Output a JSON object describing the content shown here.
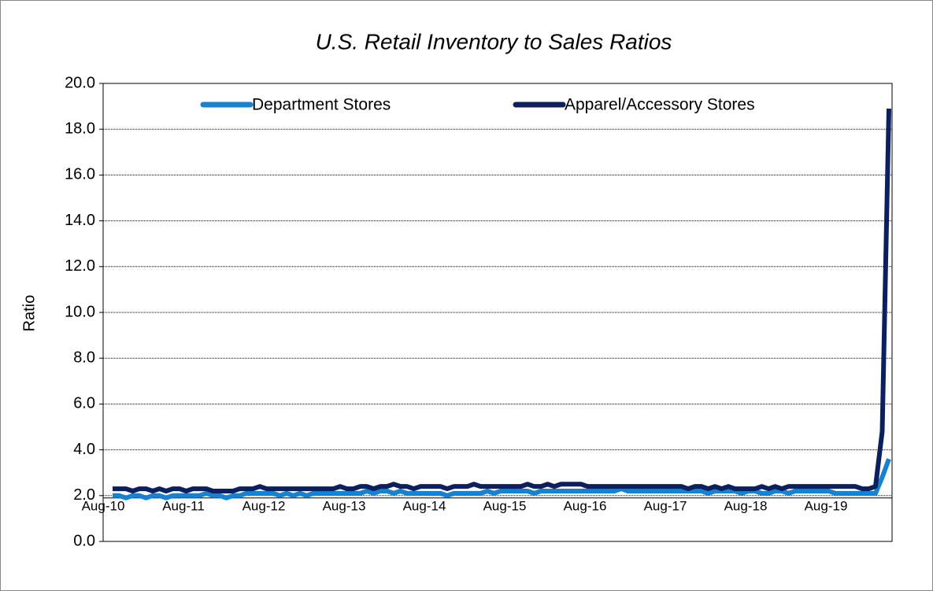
{
  "chart_data": {
    "type": "line",
    "title": "U.S. Retail Inventory to Sales Ratios",
    "y_label": "Ratio",
    "categories": [
      "Aug-10",
      null,
      null,
      null,
      null,
      null,
      null,
      null,
      null,
      null,
      null,
      null,
      "Aug-11",
      null,
      null,
      null,
      null,
      null,
      null,
      null,
      null,
      null,
      null,
      null,
      "Aug-12",
      null,
      null,
      null,
      null,
      null,
      null,
      null,
      null,
      null,
      null,
      null,
      "Aug-13",
      null,
      null,
      null,
      null,
      null,
      null,
      null,
      null,
      null,
      null,
      null,
      "Aug-14",
      null,
      null,
      null,
      null,
      null,
      null,
      null,
      null,
      null,
      null,
      null,
      "Aug-15",
      null,
      null,
      null,
      null,
      null,
      null,
      null,
      null,
      null,
      null,
      null,
      "Aug-16",
      null,
      null,
      null,
      null,
      null,
      null,
      null,
      null,
      null,
      null,
      null,
      "Aug-17",
      null,
      null,
      null,
      null,
      null,
      null,
      null,
      null,
      null,
      null,
      null,
      "Aug-18",
      null,
      null,
      null,
      null,
      null,
      null,
      null,
      null,
      null,
      null,
      null,
      "Aug-19",
      null,
      null,
      null,
      null,
      null,
      null,
      null,
      null
    ],
    "series": [
      {
        "name": "Department Stores",
        "color": "#1682d0",
        "values": [
          2.0,
          2.0,
          1.9,
          2.0,
          2.0,
          1.9,
          2.0,
          2.0,
          1.9,
          2.0,
          2.0,
          2.0,
          2.0,
          2.0,
          2.1,
          2.0,
          2.0,
          1.9,
          2.0,
          2.0,
          2.1,
          2.1,
          2.1,
          2.1,
          2.1,
          2.0,
          2.1,
          2.0,
          2.1,
          2.0,
          2.1,
          2.1,
          2.1,
          2.1,
          2.1,
          2.1,
          2.1,
          2.1,
          2.2,
          2.1,
          2.2,
          2.2,
          2.1,
          2.2,
          2.1,
          2.1,
          2.1,
          2.1,
          2.1,
          2.1,
          2.0,
          2.1,
          2.1,
          2.1,
          2.1,
          2.1,
          2.2,
          2.1,
          2.2,
          2.2,
          2.2,
          2.2,
          2.2,
          2.1,
          2.2,
          2.2,
          2.2,
          2.2,
          2.2,
          2.2,
          2.2,
          2.2,
          2.2,
          2.2,
          2.2,
          2.2,
          2.3,
          2.2,
          2.2,
          2.2,
          2.2,
          2.2,
          2.2,
          2.2,
          2.2,
          2.2,
          2.2,
          2.2,
          2.2,
          2.1,
          2.2,
          2.2,
          2.2,
          2.2,
          2.1,
          2.2,
          2.2,
          2.1,
          2.1,
          2.2,
          2.2,
          2.1,
          2.2,
          2.2,
          2.2,
          2.2,
          2.2,
          2.2,
          2.1,
          2.1,
          2.1,
          2.1,
          2.1,
          2.1,
          2.1,
          2.8,
          3.6
        ]
      },
      {
        "name": "Apparel/Accessory Stores",
        "color": "#0c1f5e",
        "values": [
          2.3,
          2.3,
          2.3,
          2.2,
          2.3,
          2.3,
          2.2,
          2.3,
          2.2,
          2.3,
          2.3,
          2.2,
          2.3,
          2.3,
          2.3,
          2.2,
          2.2,
          2.2,
          2.2,
          2.3,
          2.3,
          2.3,
          2.4,
          2.3,
          2.3,
          2.3,
          2.3,
          2.3,
          2.3,
          2.3,
          2.3,
          2.3,
          2.3,
          2.3,
          2.4,
          2.3,
          2.3,
          2.4,
          2.4,
          2.3,
          2.4,
          2.4,
          2.5,
          2.4,
          2.4,
          2.3,
          2.4,
          2.4,
          2.4,
          2.4,
          2.3,
          2.4,
          2.4,
          2.4,
          2.5,
          2.4,
          2.4,
          2.4,
          2.4,
          2.4,
          2.4,
          2.4,
          2.5,
          2.4,
          2.4,
          2.5,
          2.4,
          2.5,
          2.5,
          2.5,
          2.5,
          2.4,
          2.4,
          2.4,
          2.4,
          2.4,
          2.4,
          2.4,
          2.4,
          2.4,
          2.4,
          2.4,
          2.4,
          2.4,
          2.4,
          2.4,
          2.3,
          2.4,
          2.4,
          2.3,
          2.4,
          2.3,
          2.4,
          2.3,
          2.3,
          2.3,
          2.3,
          2.4,
          2.3,
          2.4,
          2.3,
          2.4,
          2.4,
          2.4,
          2.4,
          2.4,
          2.4,
          2.4,
          2.4,
          2.4,
          2.4,
          2.4,
          2.3,
          2.3,
          2.4,
          4.8,
          18.9
        ]
      }
    ],
    "ylim": [
      0,
      20
    ],
    "yticks": [
      {
        "value": 0,
        "label": "0.0"
      },
      {
        "value": 2,
        "label": "2.0"
      },
      {
        "value": 4,
        "label": "4.0"
      },
      {
        "value": 6,
        "label": "6.0"
      },
      {
        "value": 8,
        "label": "8.0"
      },
      {
        "value": 10,
        "label": "10.0"
      },
      {
        "value": 12,
        "label": "12.0"
      },
      {
        "value": 14,
        "label": "14.0"
      },
      {
        "value": 16,
        "label": "16.0"
      },
      {
        "value": 18,
        "label": "18.0"
      },
      {
        "value": 20,
        "label": "20.0"
      }
    ],
    "grid": true,
    "legend": "top"
  }
}
